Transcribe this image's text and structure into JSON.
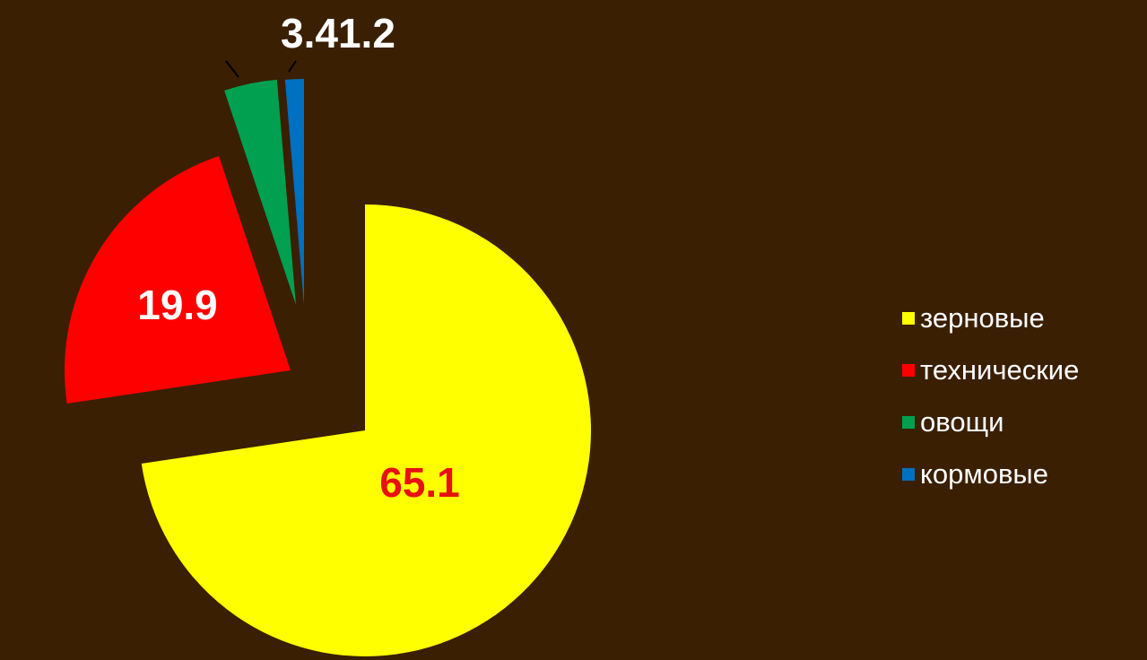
{
  "chart_data": {
    "type": "pie",
    "title": "",
    "exploded": true,
    "slices": [
      {
        "name": "зерновые",
        "value": 65.1,
        "label": "65.1",
        "color": "#ffff00"
      },
      {
        "name": "технические",
        "value": 19.9,
        "label": "19.9",
        "color": "#ff0000"
      },
      {
        "name": "овощи",
        "value": 3.4,
        "label": "3.4",
        "color": "#00a050"
      },
      {
        "name": "кормовые",
        "value": 1.2,
        "label": "1.2",
        "color": "#0070c0"
      }
    ],
    "legend": {
      "placement": "right",
      "items": [
        "зерновые",
        "технические",
        "овощи",
        "кормовые"
      ]
    }
  }
}
